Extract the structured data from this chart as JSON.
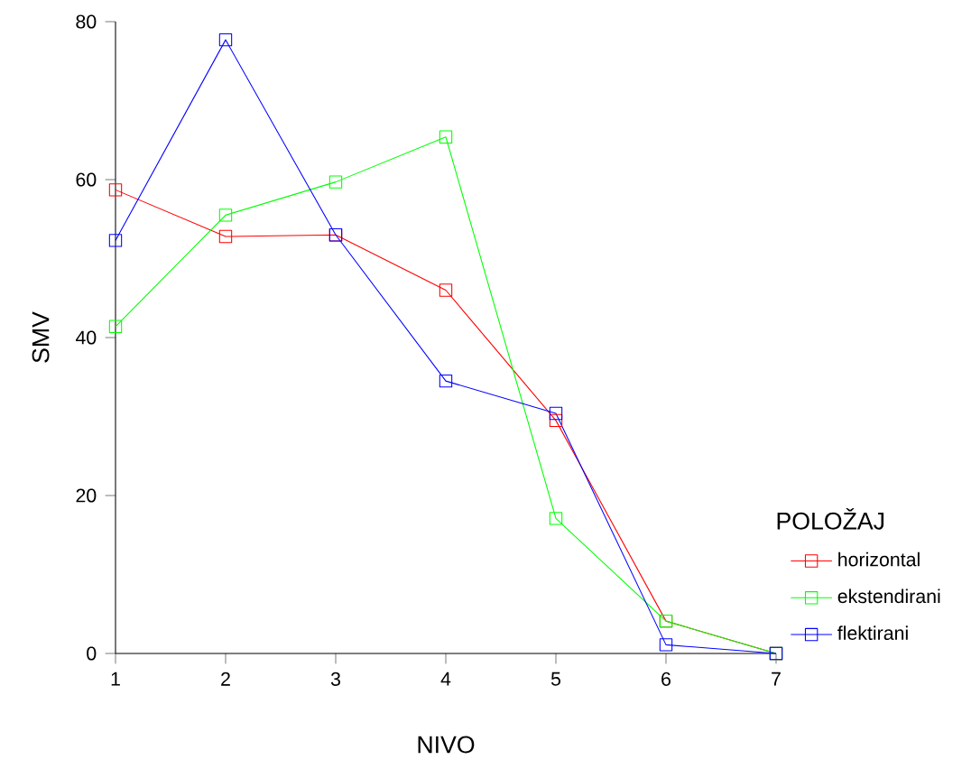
{
  "chart_data": {
    "type": "line",
    "xlabel": "NIVO",
    "ylabel": "SMV",
    "legend_title": "POLOŽAJ",
    "x": [
      1,
      2,
      3,
      4,
      5,
      6,
      7
    ],
    "series": [
      {
        "name": "horizontal",
        "color": "#ff0000",
        "values": [
          58.7,
          52.8,
          53,
          46,
          29.5,
          4.1,
          0
        ]
      },
      {
        "name": "ekstendirani",
        "color": "#00ff00",
        "values": [
          41.4,
          55.5,
          59.7,
          65.4,
          17.1,
          4.1,
          0
        ]
      },
      {
        "name": "flektirani",
        "color": "#0000ff",
        "values": [
          52.3,
          77.7,
          53,
          34.5,
          30.4,
          1.1,
          0
        ]
      }
    ],
    "xlim": [
      1,
      7
    ],
    "ylim": [
      0,
      80
    ],
    "xticks": [
      1,
      2,
      3,
      4,
      5,
      6,
      7
    ],
    "yticks": [
      0,
      20,
      40,
      60,
      80
    ],
    "grid": false,
    "legend": "right",
    "marker": "square",
    "line_style": "solid"
  }
}
